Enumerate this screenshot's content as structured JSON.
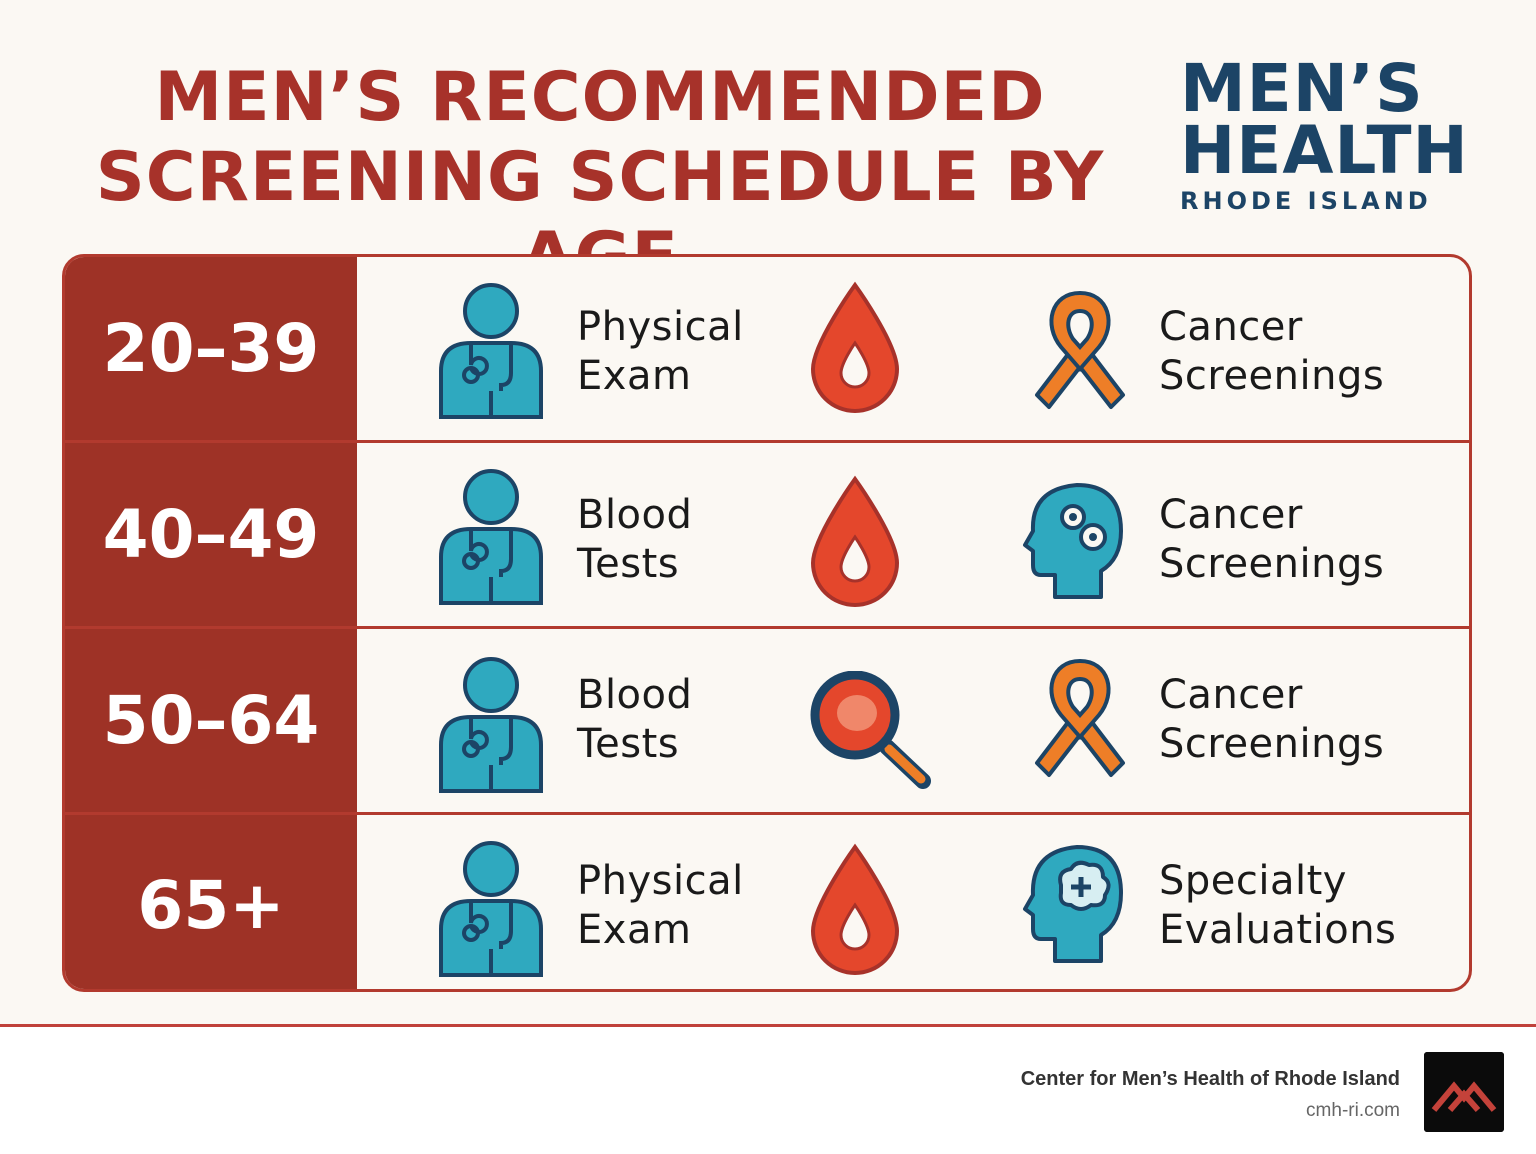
{
  "header": {
    "title_line1": "MEN’S RECOMMENDED",
    "title_line2": "SCREENING SCHEDULE BY AGE"
  },
  "logo": {
    "line1": "MEN’S",
    "line2": "HEALTH",
    "line3": "RHODE ISLAND"
  },
  "rows": [
    {
      "age": "20–39",
      "label1_line1": "Physical",
      "label1_line2": "Exam",
      "middle_icon": "blood-drop-icon",
      "right_icon": "awareness-ribbon-icon",
      "label2_line1": "Cancer",
      "label2_line2": "Screenings"
    },
    {
      "age": "40–49",
      "label1_line1": "Blood",
      "label1_line2": "Tests",
      "middle_icon": "blood-drop-icon",
      "right_icon": "head-gears-icon",
      "label2_line1": "Cancer",
      "label2_line2": "Screenings"
    },
    {
      "age": "50–64",
      "label1_line1": "Blood",
      "label1_line2": "Tests",
      "middle_icon": "magnifier-icon",
      "right_icon": "awareness-ribbon-icon",
      "label2_line1": "Cancer",
      "label2_line2": "Screenings"
    },
    {
      "age": "65+",
      "label1_line1": "Physical",
      "label1_line2": "Exam",
      "middle_icon": "blood-drop-icon",
      "right_icon": "head-brain-icon",
      "label2_line1": "Specialty",
      "label2_line2": "Evaluations"
    }
  ],
  "footer": {
    "name": "Center for Men’s Health of Rhode Island",
    "url": "cmh-ri.com"
  },
  "colors": {
    "brand_red": "#9e3226",
    "title_red": "#a7322a",
    "logo_navy": "#1c4466",
    "teal": "#2fa9bf",
    "drop_red": "#e4472c",
    "ribbon_orange": "#ee7e27"
  }
}
